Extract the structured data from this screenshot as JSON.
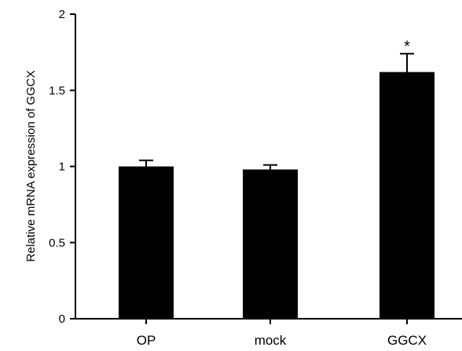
{
  "chart_data": {
    "type": "bar",
    "title": "",
    "xlabel": "",
    "ylabel": "Relative mRNA expression of GGCX",
    "categories": [
      "OP",
      "mock",
      "GGCX"
    ],
    "values": [
      1.0,
      0.98,
      1.62
    ],
    "errors": [
      0.04,
      0.03,
      0.12
    ],
    "annotations": [
      "",
      "",
      "*"
    ],
    "ylim": [
      0,
      2
    ],
    "yticks": [
      0,
      0.5,
      1,
      1.5,
      2
    ],
    "ytick_labels": [
      "0",
      "0.5",
      "1",
      "1.5",
      "2"
    ],
    "grid": false,
    "bar_color": "#000000"
  }
}
